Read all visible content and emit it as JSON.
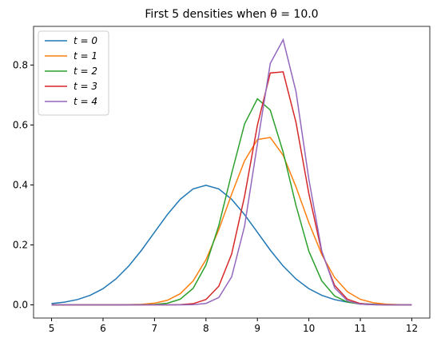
{
  "chart_data": {
    "type": "line",
    "title": "First 5 densities when θ = 10.0",
    "x": [
      5,
      5.25,
      5.5,
      5.75,
      6,
      6.25,
      6.5,
      6.75,
      7,
      7.25,
      7.5,
      7.75,
      8,
      8.25,
      8.5,
      8.75,
      9,
      9.25,
      9.5,
      9.75,
      10,
      10.25,
      10.5,
      10.75,
      11,
      11.25,
      11.5,
      11.75,
      12
    ],
    "series": [
      {
        "name": "t = 0",
        "color": "#1f77b4",
        "values": [
          0.0044,
          0.0091,
          0.0175,
          0.0317,
          0.054,
          0.0863,
          0.1295,
          0.1826,
          0.242,
          0.3011,
          0.3521,
          0.3867,
          0.3989,
          0.3867,
          0.3521,
          0.3011,
          0.242,
          0.1826,
          0.1295,
          0.0863,
          0.054,
          0.0317,
          0.0175,
          0.0091,
          0.0044,
          0.002,
          0.0009,
          0.0003,
          0.0001
        ]
      },
      {
        "name": "t = 1",
        "color": "#ff7f0e",
        "values": [
          0,
          0,
          0,
          0,
          0,
          0.0001,
          0.0005,
          0.0018,
          0.0055,
          0.0152,
          0.0371,
          0.0795,
          0.1506,
          0.2509,
          0.3696,
          0.4806,
          0.5515,
          0.5584,
          0.499,
          0.3934,
          0.2739,
          0.1681,
          0.0911,
          0.0436,
          0.0184,
          0.0069,
          0.0023,
          0.0007,
          0.0002
        ]
      },
      {
        "name": "t = 2",
        "color": "#2ca02c",
        "values": [
          0,
          0,
          0,
          0,
          0,
          0,
          0.0001,
          0.0003,
          0.0013,
          0.0054,
          0.0189,
          0.055,
          0.1326,
          0.2648,
          0.4388,
          0.6032,
          0.6875,
          0.6498,
          0.5095,
          0.3313,
          0.1787,
          0.08,
          0.0296,
          0.0091,
          0.0023,
          0.0005,
          0.0001,
          0,
          0
        ]
      },
      {
        "name": "t = 3",
        "color": "#d62728",
        "values": [
          0,
          0,
          0,
          0,
          0,
          0,
          0,
          0,
          0,
          0.0001,
          0.0007,
          0.0039,
          0.0177,
          0.0623,
          0.1698,
          0.3616,
          0.5993,
          0.7734,
          0.7773,
          0.6085,
          0.3707,
          0.176,
          0.065,
          0.0187,
          0.0042,
          0.0007,
          0.0001,
          0,
          0
        ]
      },
      {
        "name": "t = 4",
        "color": "#9467bd",
        "values": [
          0,
          0,
          0,
          0,
          0,
          0,
          0,
          0,
          0,
          0,
          0.0001,
          0.0007,
          0.0047,
          0.0246,
          0.0937,
          0.2622,
          0.5372,
          0.8055,
          0.8845,
          0.7113,
          0.4186,
          0.1803,
          0.0569,
          0.0132,
          0.0022,
          0.0003,
          0,
          0,
          0
        ]
      }
    ],
    "xlim": [
      4.65,
      12.35
    ],
    "xticks": [
      5,
      6,
      7,
      8,
      9,
      10,
      11,
      12
    ],
    "ylim": [
      -0.044,
      0.929
    ],
    "yticks": [
      {
        "value": 0,
        "label": "0.0"
      },
      0.2,
      0.4,
      0.6,
      0.8
    ],
    "legend": "upper left",
    "grid": false
  }
}
